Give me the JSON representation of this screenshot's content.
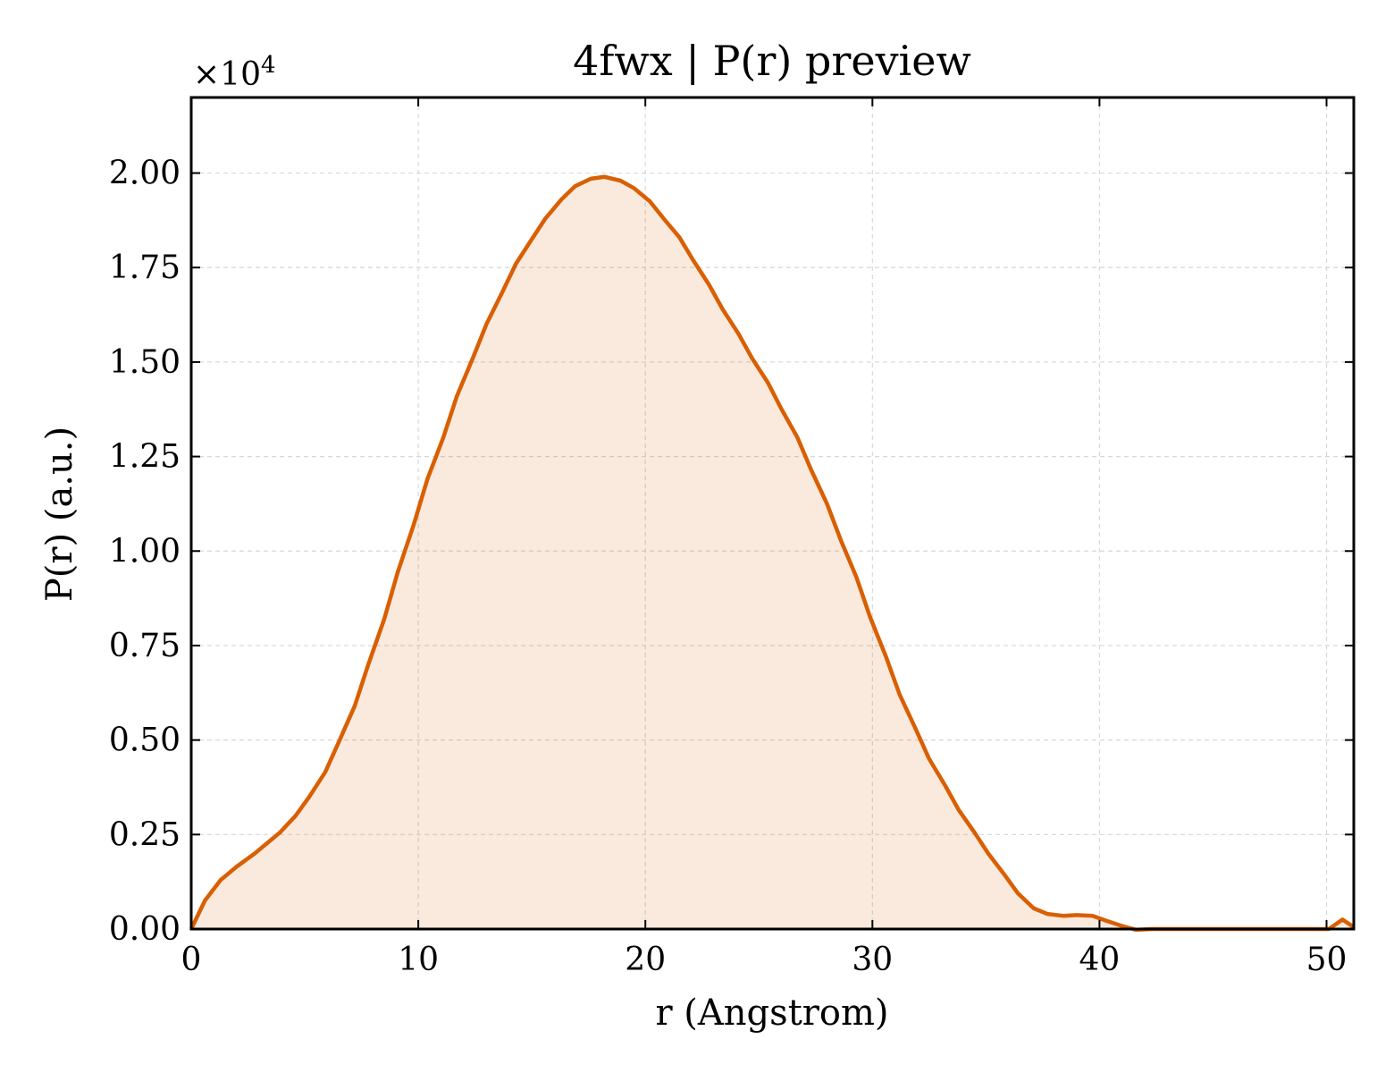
{
  "chart_data": {
    "type": "area",
    "title": "4fwx | P(r) preview",
    "xlabel": "r (Angstrom)",
    "ylabel": "P(r) (a.u.)",
    "y_multiplier": "×10",
    "y_multiplier_exp": "4",
    "xlim": [
      0,
      51.2
    ],
    "ylim": [
      0,
      2.2
    ],
    "xticks": [
      0,
      10,
      20,
      30,
      40,
      50
    ],
    "xtick_labels": [
      "0",
      "10",
      "20",
      "30",
      "40",
      "50"
    ],
    "yticks": [
      0,
      0.25,
      0.5,
      0.75,
      1.0,
      1.25,
      1.5,
      1.75,
      2.0
    ],
    "ytick_labels": [
      "0.00",
      "0.25",
      "0.50",
      "0.75",
      "1.00",
      "1.25",
      "1.50",
      "1.75",
      "2.00"
    ],
    "grid": true,
    "line_color": "#d95f02",
    "fill_color": "#d95f02",
    "fill_opacity": 0.13,
    "series": [
      {
        "x": [
          0,
          0.6,
          1.3,
          2,
          2.8,
          3.3,
          3.9,
          4.6,
          5.2,
          5.9,
          6.5,
          7.2,
          7.8,
          8.5,
          9.1,
          9.8,
          10.4,
          11.1,
          11.7,
          12.4,
          13,
          13.7,
          14.3,
          15,
          15.6,
          16.3,
          16.9,
          17.6,
          18.2,
          18.9,
          19.5,
          20.2,
          20.8,
          21.5,
          22.1,
          22.8,
          23.4,
          24.1,
          24.7,
          25.4,
          26,
          26.7,
          27.3,
          28,
          28.6,
          29.3,
          29.9,
          30.6,
          31.2,
          31.9,
          32.5,
          33.2,
          33.8,
          34.5,
          35.1,
          35.8,
          36.4,
          37.1,
          37.7,
          38.4,
          39,
          39.7,
          40.3,
          41,
          41.6,
          42.3,
          42.9,
          43.6,
          44.2,
          44.9,
          45.5,
          46.2,
          46.8,
          47.5,
          48.1,
          48.8,
          49.4,
          50.1,
          50.7,
          51.2
        ],
        "y": [
          0,
          0.075,
          0.13,
          0.165,
          0.2,
          0.225,
          0.255,
          0.3,
          0.35,
          0.415,
          0.495,
          0.59,
          0.7,
          0.82,
          0.945,
          1.07,
          1.19,
          1.3,
          1.41,
          1.51,
          1.6,
          1.685,
          1.76,
          1.825,
          1.88,
          1.93,
          1.965,
          1.985,
          1.99,
          1.98,
          1.96,
          1.925,
          1.88,
          1.83,
          1.77,
          1.705,
          1.64,
          1.575,
          1.51,
          1.445,
          1.375,
          1.3,
          1.215,
          1.125,
          1.03,
          0.93,
          0.825,
          0.72,
          0.62,
          0.53,
          0.45,
          0.38,
          0.315,
          0.255,
          0.2,
          0.145,
          0.095,
          0.055,
          0.04,
          0.035,
          0.037,
          0.035,
          0.022,
          0.008,
          -0.002,
          0,
          0,
          0,
          0,
          0,
          0,
          0,
          0,
          0,
          0,
          0,
          0,
          0,
          0.025,
          0.005
        ]
      }
    ]
  }
}
